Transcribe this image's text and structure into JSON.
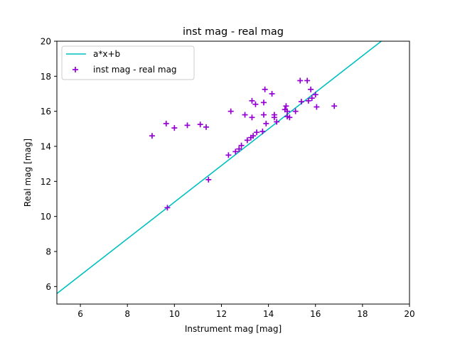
{
  "chart_data": {
    "type": "scatter",
    "title": "inst mag - real mag",
    "xlabel": "Instrument mag [mag]",
    "ylabel": "Real mag [mag]",
    "xlim": [
      5,
      20
    ],
    "ylim": [
      5,
      20
    ],
    "xticks": [
      6,
      8,
      10,
      12,
      14,
      16,
      18,
      20
    ],
    "yticks": [
      6,
      8,
      10,
      12,
      14,
      16,
      18,
      20
    ],
    "grid": false,
    "legend_position": "upper-left",
    "series": [
      {
        "name": "a*x+b",
        "kind": "line",
        "color": "#00bfbf",
        "x": [
          5,
          18.8
        ],
        "y": [
          5.6,
          20.0
        ]
      },
      {
        "name": "inst mag - real mag",
        "kind": "scatter",
        "marker": "plus",
        "color": "#9400d3",
        "points": [
          [
            9.05,
            14.6
          ],
          [
            9.65,
            15.3
          ],
          [
            10.0,
            15.05
          ],
          [
            10.55,
            15.2
          ],
          [
            11.1,
            15.25
          ],
          [
            11.35,
            15.1
          ],
          [
            11.45,
            12.1
          ],
          [
            9.7,
            10.5
          ],
          [
            12.3,
            13.5
          ],
          [
            12.4,
            16.0
          ],
          [
            12.6,
            13.7
          ],
          [
            12.75,
            13.85
          ],
          [
            12.85,
            14.05
          ],
          [
            13.0,
            15.8
          ],
          [
            13.1,
            14.35
          ],
          [
            13.25,
            14.5
          ],
          [
            13.35,
            14.6
          ],
          [
            13.3,
            16.6
          ],
          [
            13.3,
            15.65
          ],
          [
            13.45,
            16.4
          ],
          [
            13.5,
            14.8
          ],
          [
            13.75,
            14.85
          ],
          [
            13.8,
            15.8
          ],
          [
            13.8,
            16.5
          ],
          [
            13.85,
            17.25
          ],
          [
            13.9,
            15.3
          ],
          [
            14.15,
            17.0
          ],
          [
            14.25,
            15.8
          ],
          [
            14.25,
            15.65
          ],
          [
            14.35,
            15.4
          ],
          [
            14.7,
            16.1
          ],
          [
            14.75,
            16.3
          ],
          [
            14.8,
            15.7
          ],
          [
            14.8,
            16.0
          ],
          [
            14.9,
            15.65
          ],
          [
            15.15,
            16.0
          ],
          [
            15.35,
            17.75
          ],
          [
            15.4,
            16.55
          ],
          [
            15.65,
            17.75
          ],
          [
            15.7,
            16.6
          ],
          [
            15.8,
            17.25
          ],
          [
            15.85,
            16.75
          ],
          [
            16.0,
            16.95
          ],
          [
            16.05,
            16.25
          ],
          [
            16.8,
            16.3
          ]
        ]
      }
    ]
  }
}
